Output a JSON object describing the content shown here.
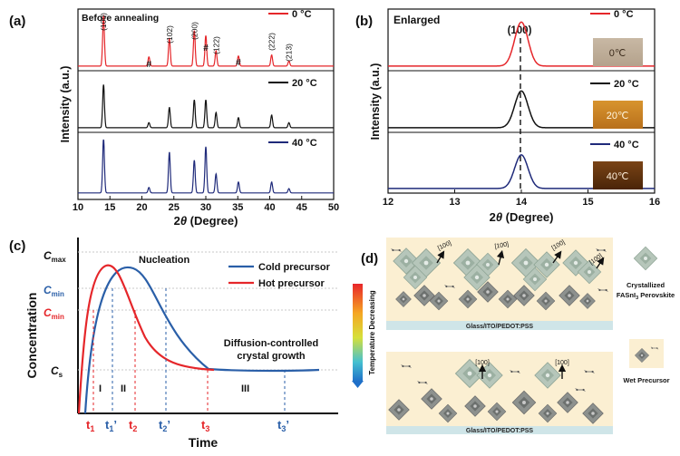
{
  "panels": {
    "a": {
      "label": "(a)",
      "note": "Before annealing",
      "xlabel_pre": "2",
      "xlabel_theta": "θ",
      "xlabel_post": " (Degree)",
      "ylabel": "Intensity (a.u.)",
      "peak_labels": [
        "(100)",
        "#",
        "(102)",
        "(200)",
        "#",
        "(122)",
        "#",
        "(222)",
        "(213)"
      ]
    },
    "b": {
      "label": "(b)",
      "note": "Enlarged",
      "peak_label": "(100)",
      "xlabel_pre": "2",
      "xlabel_theta": "θ",
      "xlabel_post": " (Degree)",
      "ylabel": "Intensity (a.u.)",
      "photo_labels": [
        "0℃",
        "20℃",
        "40℃"
      ]
    },
    "c": {
      "label": "(c)",
      "ylabel": "Concentration",
      "xlabel": "Time",
      "y_marks": [
        "C",
        "C",
        "C",
        "C"
      ],
      "y_subs": [
        "max",
        "min",
        "min",
        "s"
      ],
      "nucleation": "Nucleation",
      "growth_1": "Diffusion-controlled",
      "growth_2": "crystal growth",
      "regions": [
        "I",
        "II",
        "III"
      ],
      "t_labels": [
        "t",
        "t",
        "t",
        "t",
        "t",
        "t"
      ],
      "t_subs": [
        "1",
        "1",
        "2",
        "2",
        "3",
        "3"
      ],
      "t_primes": [
        "",
        "’",
        "",
        "’",
        "",
        "’"
      ]
    },
    "d": {
      "label": "(d)",
      "gradient_label": "Temperature Decreasing",
      "substrate": "Glass/ITO/PEDOT:PSS",
      "dir_label": "[100]",
      "legend_crystal_1": "Crystallized",
      "legend_crystal_2": "FASnI",
      "legend_crystal_sub": "3",
      "legend_crystal_3": " Perovskite",
      "legend_wet": "Wet Precursor"
    }
  },
  "colors": {
    "red": "#e5262a",
    "black": "#111111",
    "navy": "#1f2a7a",
    "blue": "#2a5fa8",
    "film": "#fbefd2",
    "substrate": "#cfe5e8"
  },
  "chart_data": [
    {
      "type": "line",
      "panel": "a",
      "title": "Before annealing",
      "xlabel": "2θ (Degree)",
      "ylabel": "Intensity (a.u.)",
      "xlim": [
        10,
        50
      ],
      "xticks": [
        10,
        15,
        20,
        25,
        30,
        35,
        40,
        45,
        50
      ],
      "series": [
        {
          "name": "0 °C",
          "color": "#e5262a",
          "peaks": [
            [
              14.0,
              1.0
            ],
            [
              21.1,
              0.18
            ],
            [
              24.3,
              0.55
            ],
            [
              28.2,
              0.7
            ],
            [
              30.0,
              0.6
            ],
            [
              31.6,
              0.3
            ],
            [
              35.1,
              0.2
            ],
            [
              40.3,
              0.22
            ],
            [
              43.0,
              0.1
            ]
          ]
        },
        {
          "name": "20 °C",
          "color": "#111111",
          "peaks": [
            [
              14.0,
              0.85
            ],
            [
              21.1,
              0.1
            ],
            [
              24.3,
              0.4
            ],
            [
              28.2,
              0.55
            ],
            [
              30.0,
              0.55
            ],
            [
              31.6,
              0.3
            ],
            [
              35.1,
              0.2
            ],
            [
              40.3,
              0.25
            ],
            [
              43.0,
              0.1
            ]
          ]
        },
        {
          "name": "40 °C",
          "color": "#1f2a7a",
          "peaks": [
            [
              14.0,
              1.0
            ],
            [
              21.1,
              0.1
            ],
            [
              24.3,
              0.75
            ],
            [
              28.2,
              0.6
            ],
            [
              30.0,
              0.85
            ],
            [
              31.6,
              0.35
            ],
            [
              35.1,
              0.2
            ],
            [
              40.3,
              0.2
            ],
            [
              43.0,
              0.08
            ]
          ]
        }
      ]
    },
    {
      "type": "line",
      "panel": "b",
      "title": "Enlarged",
      "xlabel": "2θ (Degree)",
      "ylabel": "Intensity (a.u.)",
      "xlim": [
        12,
        16
      ],
      "xticks": [
        12,
        13,
        14,
        15,
        16
      ],
      "series": [
        {
          "name": "0 °C",
          "color": "#e5262a",
          "center": 14.0,
          "height": 0.9
        },
        {
          "name": "20 °C",
          "color": "#111111",
          "center": 14.0,
          "height": 0.75
        },
        {
          "name": "40 °C",
          "color": "#1f2a7a",
          "center": 14.0,
          "height": 0.7
        }
      ]
    },
    {
      "type": "line",
      "panel": "c",
      "xlabel": "Time",
      "ylabel": "Concentration",
      "series": [
        {
          "name": "Cold precursor",
          "color": "#2a5fa8"
        },
        {
          "name": "Hot precursor",
          "color": "#e5262a"
        }
      ]
    }
  ]
}
